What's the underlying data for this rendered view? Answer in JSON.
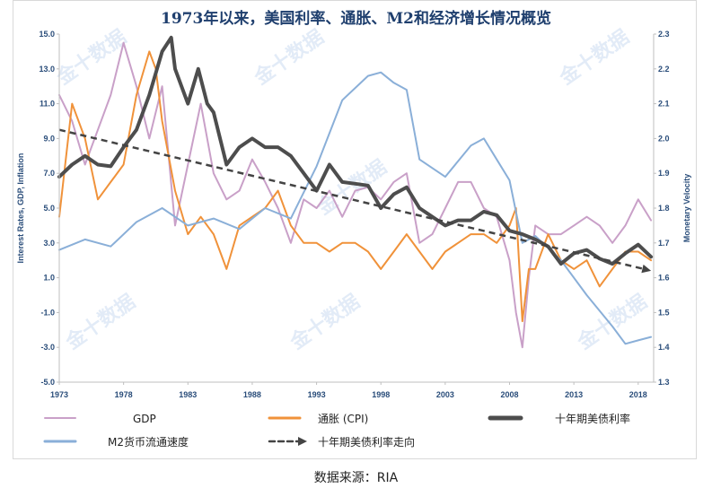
{
  "title": "1973年以来，美国利率、通胀、M2和经济增长情况概览",
  "source_note": "数据来源：RIA",
  "watermark": "金十数据",
  "chart_data": {
    "type": "line",
    "x_ticks": [
      "1973",
      "1978",
      "1983",
      "1988",
      "1993",
      "1998",
      "2003",
      "2008",
      "2013",
      "2018"
    ],
    "x_range": [
      1973,
      2019.2
    ],
    "y_left": {
      "label": "Interest Rates, GDP, Inflation",
      "range": [
        -5,
        15
      ],
      "ticks": [
        "15.0",
        "13.0",
        "11.0",
        "9.0",
        "7.0",
        "5.0",
        "3.0",
        "1.0",
        "-1.0",
        "-3.0",
        "-5.0"
      ]
    },
    "y_right": {
      "label": "Monetary Velocity",
      "range": [
        1.3,
        2.3
      ],
      "ticks": [
        "2.3",
        "2.2",
        "2.1",
        "2.0",
        "1.9",
        "1.8",
        "1.7",
        "1.6",
        "1.5",
        "1.4",
        "1.3"
      ]
    },
    "series": [
      {
        "key": "gdp",
        "name": "GDP",
        "color": "#c9a0c8",
        "axis": "left",
        "width": 2,
        "x": [
          1973,
          1974,
          1975,
          1976,
          1977,
          1978,
          1979,
          1980,
          1981,
          1982,
          1983,
          1984,
          1985,
          1986,
          1987,
          1988,
          1989,
          1990,
          1991,
          1992,
          1993,
          1994,
          1995,
          1996,
          1997,
          1998,
          1999,
          2000,
          2001,
          2002,
          2003,
          2004,
          2005,
          2006,
          2007,
          2008,
          2008.5,
          2009,
          2009.5,
          2010,
          2011,
          2012,
          2013,
          2014,
          2015,
          2016,
          2017,
          2018,
          2019
        ],
        "y": [
          11.5,
          10.0,
          7.5,
          9.5,
          11.5,
          14.5,
          12.0,
          9.0,
          12.0,
          4.0,
          7.5,
          11.0,
          7.0,
          5.5,
          6.0,
          7.8,
          6.5,
          5.0,
          3.0,
          5.5,
          5.0,
          6.0,
          4.5,
          6.0,
          6.2,
          5.5,
          6.5,
          7.0,
          3.0,
          3.5,
          5.0,
          6.5,
          6.5,
          5.0,
          4.5,
          2.0,
          -1.0,
          -3.0,
          1.0,
          4.0,
          3.5,
          3.5,
          4.0,
          4.5,
          4.0,
          3.0,
          4.0,
          5.5,
          4.3
        ]
      },
      {
        "key": "cpi",
        "name": "通胀（CPI）",
        "color": "#f0923a",
        "axis": "left",
        "width": 2,
        "x": [
          1973,
          1974,
          1975,
          1976,
          1977,
          1978,
          1979,
          1980,
          1980.5,
          1981,
          1982,
          1983,
          1984,
          1985,
          1986,
          1987,
          1988,
          1989,
          1990,
          1991,
          1992,
          1993,
          1994,
          1995,
          1996,
          1997,
          1998,
          1999,
          2000,
          2001,
          2002,
          2003,
          2004,
          2005,
          2006,
          2007,
          2008,
          2008.5,
          2009,
          2009.5,
          2010,
          2011,
          2012,
          2013,
          2014,
          2015,
          2016,
          2017,
          2018,
          2019
        ],
        "y": [
          4.5,
          11.0,
          9.0,
          5.5,
          6.5,
          7.5,
          11.5,
          14.0,
          13.0,
          10.0,
          6.0,
          3.5,
          4.5,
          3.5,
          1.5,
          4.0,
          4.5,
          5.0,
          6.0,
          4.0,
          3.0,
          3.0,
          2.5,
          3.0,
          3.0,
          2.5,
          1.5,
          2.5,
          3.5,
          2.5,
          1.5,
          2.5,
          3.0,
          3.5,
          3.5,
          3.0,
          4.0,
          5.0,
          -1.5,
          1.5,
          1.5,
          3.5,
          2.0,
          1.5,
          2.0,
          0.5,
          1.5,
          2.5,
          2.5,
          2.0
        ]
      },
      {
        "key": "m2",
        "name": "M2货币流通速度",
        "color": "#8aafd8",
        "axis": "right",
        "width": 2,
        "x": [
          1973,
          1975,
          1977,
          1979,
          1981,
          1983,
          1985,
          1987,
          1989,
          1991,
          1993,
          1995,
          1997,
          1998,
          1999,
          2000,
          2001,
          2003,
          2005,
          2006,
          2007,
          2008,
          2009,
          2010,
          2012,
          2014,
          2016,
          2017,
          2018,
          2019
        ],
        "y": [
          1.68,
          1.71,
          1.69,
          1.76,
          1.8,
          1.75,
          1.77,
          1.74,
          1.8,
          1.77,
          1.92,
          2.11,
          2.18,
          2.19,
          2.16,
          2.14,
          1.94,
          1.89,
          1.98,
          2.0,
          1.94,
          1.88,
          1.7,
          1.72,
          1.65,
          1.55,
          1.46,
          1.41,
          1.42,
          1.43
        ]
      },
      {
        "key": "treasury",
        "name": "十年期美债利率",
        "color": "#4d4d4d",
        "axis": "left",
        "width": 4,
        "x": [
          1973,
          1974,
          1975,
          1976,
          1977,
          1978,
          1979,
          1980,
          1981,
          1981.7,
          1982,
          1983,
          1983.8,
          1984.5,
          1985,
          1986,
          1987,
          1988,
          1989,
          1990,
          1991,
          1992,
          1993,
          1994,
          1995,
          1996,
          1997,
          1998,
          1999,
          2000,
          2001,
          2002,
          2003,
          2004,
          2005,
          2006,
          2007,
          2008,
          2009,
          2010,
          2011,
          2012,
          2013,
          2014,
          2015,
          2016,
          2017,
          2018,
          2019
        ],
        "y": [
          6.8,
          7.5,
          8.0,
          7.5,
          7.4,
          8.5,
          9.5,
          11.5,
          14.0,
          14.8,
          13.0,
          11.0,
          13.0,
          11.0,
          10.5,
          7.5,
          8.5,
          9.0,
          8.5,
          8.5,
          8.0,
          7.0,
          6.0,
          7.5,
          6.5,
          6.4,
          6.3,
          5.0,
          5.8,
          6.2,
          5.0,
          4.5,
          4.0,
          4.3,
          4.3,
          4.8,
          4.6,
          3.7,
          3.5,
          3.2,
          2.8,
          1.8,
          2.4,
          2.6,
          2.1,
          1.8,
          2.4,
          2.9,
          2.2
        ]
      }
    ],
    "trend": {
      "key": "trend",
      "name": "十年期美债利率走向",
      "color": "#444444",
      "axis": "left",
      "x": [
        1973,
        2019
      ],
      "y": [
        9.5,
        1.4
      ]
    },
    "legend": [
      {
        "key": "gdp",
        "label": "GDP"
      },
      {
        "key": "cpi",
        "label": "通胀 (CPI)"
      },
      {
        "key": "treasury",
        "label": "十年期美债利率"
      },
      {
        "key": "m2",
        "label": "M2货币流通速度"
      },
      {
        "key": "trend",
        "label": "十年期美债利率走向"
      }
    ],
    "legend_placement": "bottom",
    "grid": false
  }
}
